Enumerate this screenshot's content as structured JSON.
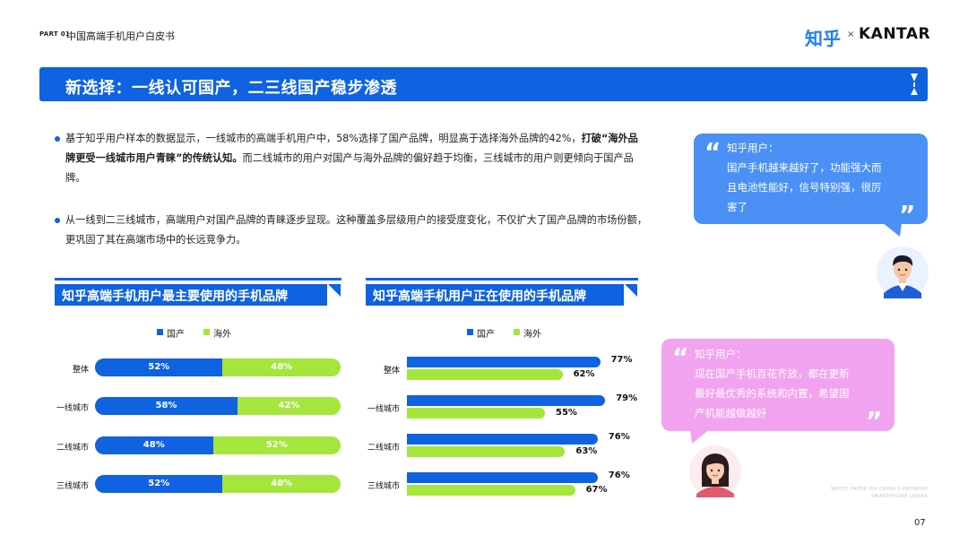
{
  "header": {
    "part": "PART 01",
    "doc_title": "中国高端手机用户白皮书",
    "logo_zh": "知乎",
    "logo_x": "×",
    "logo_brand": "KANTAR"
  },
  "banner": {
    "title": "新选择：一线认可国产，二三线国产稳步渗透"
  },
  "bullets": [
    {
      "pre": "基于知乎用户样本的数据显示，一线城市的高端手机用户中，58%选择了国产品牌，明显高于选择海外品牌的42%，",
      "bold": "打破“海外品牌更受一线城市用户青睐”的传统认知。",
      "post": "而二线城市的用户对国产与海外品牌的偏好趋于均衡，三线城市的用户则更倾向于国产品牌。"
    },
    {
      "pre": "从一线到二三线城市，高端用户对国产品牌的青睐逐步显现。这种覆盖多层级用户的接受度变化，不仅扩大了国产品牌的市场份额，更巩固了其在高端市场中的长远竞争力。",
      "bold": "",
      "post": ""
    }
  ],
  "legend": {
    "domestic": "国产",
    "overseas": "海外"
  },
  "colors": {
    "domestic": "#0f62e0",
    "overseas": "#a4e63c",
    "quote_blue": "#4a90f5",
    "quote_pink": "#f2a3f0"
  },
  "chart_data": [
    {
      "type": "bar",
      "stacked": true,
      "orientation": "horizontal",
      "title": "知乎高端手机用户最主要使用的手机品牌",
      "categories": [
        "整体",
        "一线城市",
        "二线城市",
        "三线城市"
      ],
      "series": [
        {
          "name": "国产",
          "values": [
            52,
            58,
            48,
            52
          ],
          "labels": [
            "52%",
            "58%",
            "48%",
            "52%"
          ]
        },
        {
          "name": "海外",
          "values": [
            48,
            42,
            52,
            48
          ],
          "labels": [
            "48%",
            "42%",
            "52%",
            "48%"
          ]
        }
      ],
      "xlim": [
        0,
        100
      ],
      "legend": "top"
    },
    {
      "type": "bar",
      "orientation": "horizontal",
      "title": "知乎高端手机用户正在使用的手机品牌",
      "categories": [
        "整体",
        "一线城市",
        "二线城市",
        "三线城市"
      ],
      "series": [
        {
          "name": "国产",
          "values": [
            77,
            79,
            76,
            76
          ],
          "labels": [
            "77%",
            "79%",
            "76%",
            "76%"
          ]
        },
        {
          "name": "海外",
          "values": [
            62,
            55,
            63,
            67
          ],
          "labels": [
            "62%",
            "55%",
            "63%",
            "67%"
          ]
        }
      ],
      "xlim": [
        0,
        100
      ],
      "legend": "top"
    }
  ],
  "quotes": [
    {
      "speaker": "知乎用户：",
      "text": "国产手机越来越好了，功能强大而且电池性能好，信号特别强，很厉害了",
      "lines": [
        "国产手机越来越好了，功能强大而",
        "且电池性能好，信号特别强，很厉",
        "害了"
      ],
      "avatar": "male-avatar-icon"
    },
    {
      "speaker": "知乎用户：",
      "text": "现在国产手机百花齐放，都在更新最好最优秀的系统和内置，希望国产机能越做越好",
      "lines": [
        "现在国产手机百花齐放，都在更新",
        "最好最优秀的系统和内置，希望国",
        "产机能越做越好"
      ],
      "avatar": "female-avatar-icon"
    }
  ],
  "footer": {
    "watermark_line1": "WHITE PAPER ON CHINA'S PREMIUM",
    "watermark_line2": "SMARTPHONE USERS",
    "page": "07"
  }
}
